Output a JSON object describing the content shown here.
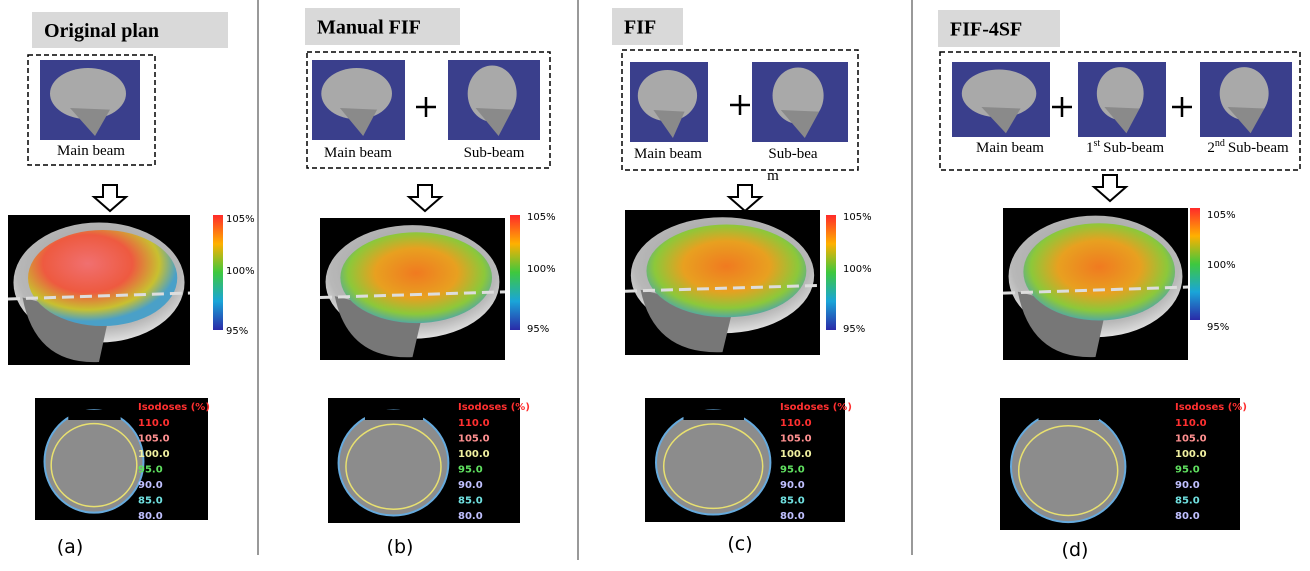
{
  "panels": [
    {
      "title": "Original plan",
      "beams": [
        {
          "label": "Main beam"
        }
      ],
      "colorbar": [
        "105%",
        "100%",
        "95%"
      ],
      "isodoses": {
        "title": "Isodoses (%)",
        "levels": [
          "110.0",
          "105.0",
          "100.0",
          "95.0",
          "90.0",
          "85.0",
          "80.0"
        ]
      },
      "caption": "(a)"
    },
    {
      "title": "Manual FIF",
      "beams": [
        {
          "label": "Main beam"
        },
        {
          "label": "Sub-beam"
        }
      ],
      "colorbar": [
        "105%",
        "100%",
        "95%"
      ],
      "isodoses": {
        "title": "Isodoses (%)",
        "levels": [
          "110.0",
          "105.0",
          "100.0",
          "95.0",
          "90.0",
          "85.0",
          "80.0"
        ]
      },
      "caption": "(b)"
    },
    {
      "title": "FIF",
      "beams": [
        {
          "label": "Main beam"
        },
        {
          "label": "Sub-bea",
          "label_overflow": "m"
        }
      ],
      "colorbar": [
        "105%",
        "100%",
        "95%"
      ],
      "isodoses": {
        "title": "Isodoses (%)",
        "levels": [
          "110.0",
          "105.0",
          "100.0",
          "95.0",
          "90.0",
          "85.0",
          "80.0"
        ]
      },
      "caption": "(c)"
    },
    {
      "title": "FIF-4SF",
      "beams": [
        {
          "label": "Main beam"
        },
        {
          "ordinal": "1",
          "ordinal_suffix": "st",
          "label": "Sub-beam"
        },
        {
          "ordinal": "2",
          "ordinal_suffix": "nd",
          "label": "Sub-beam"
        }
      ],
      "colorbar": [
        "105%",
        "100%",
        "95%"
      ],
      "isodoses": {
        "title": "Isodoses (%)",
        "levels": [
          "110.0",
          "105.0",
          "100.0",
          "95.0",
          "90.0",
          "85.0",
          "80.0"
        ]
      },
      "caption": "(d)"
    }
  ]
}
